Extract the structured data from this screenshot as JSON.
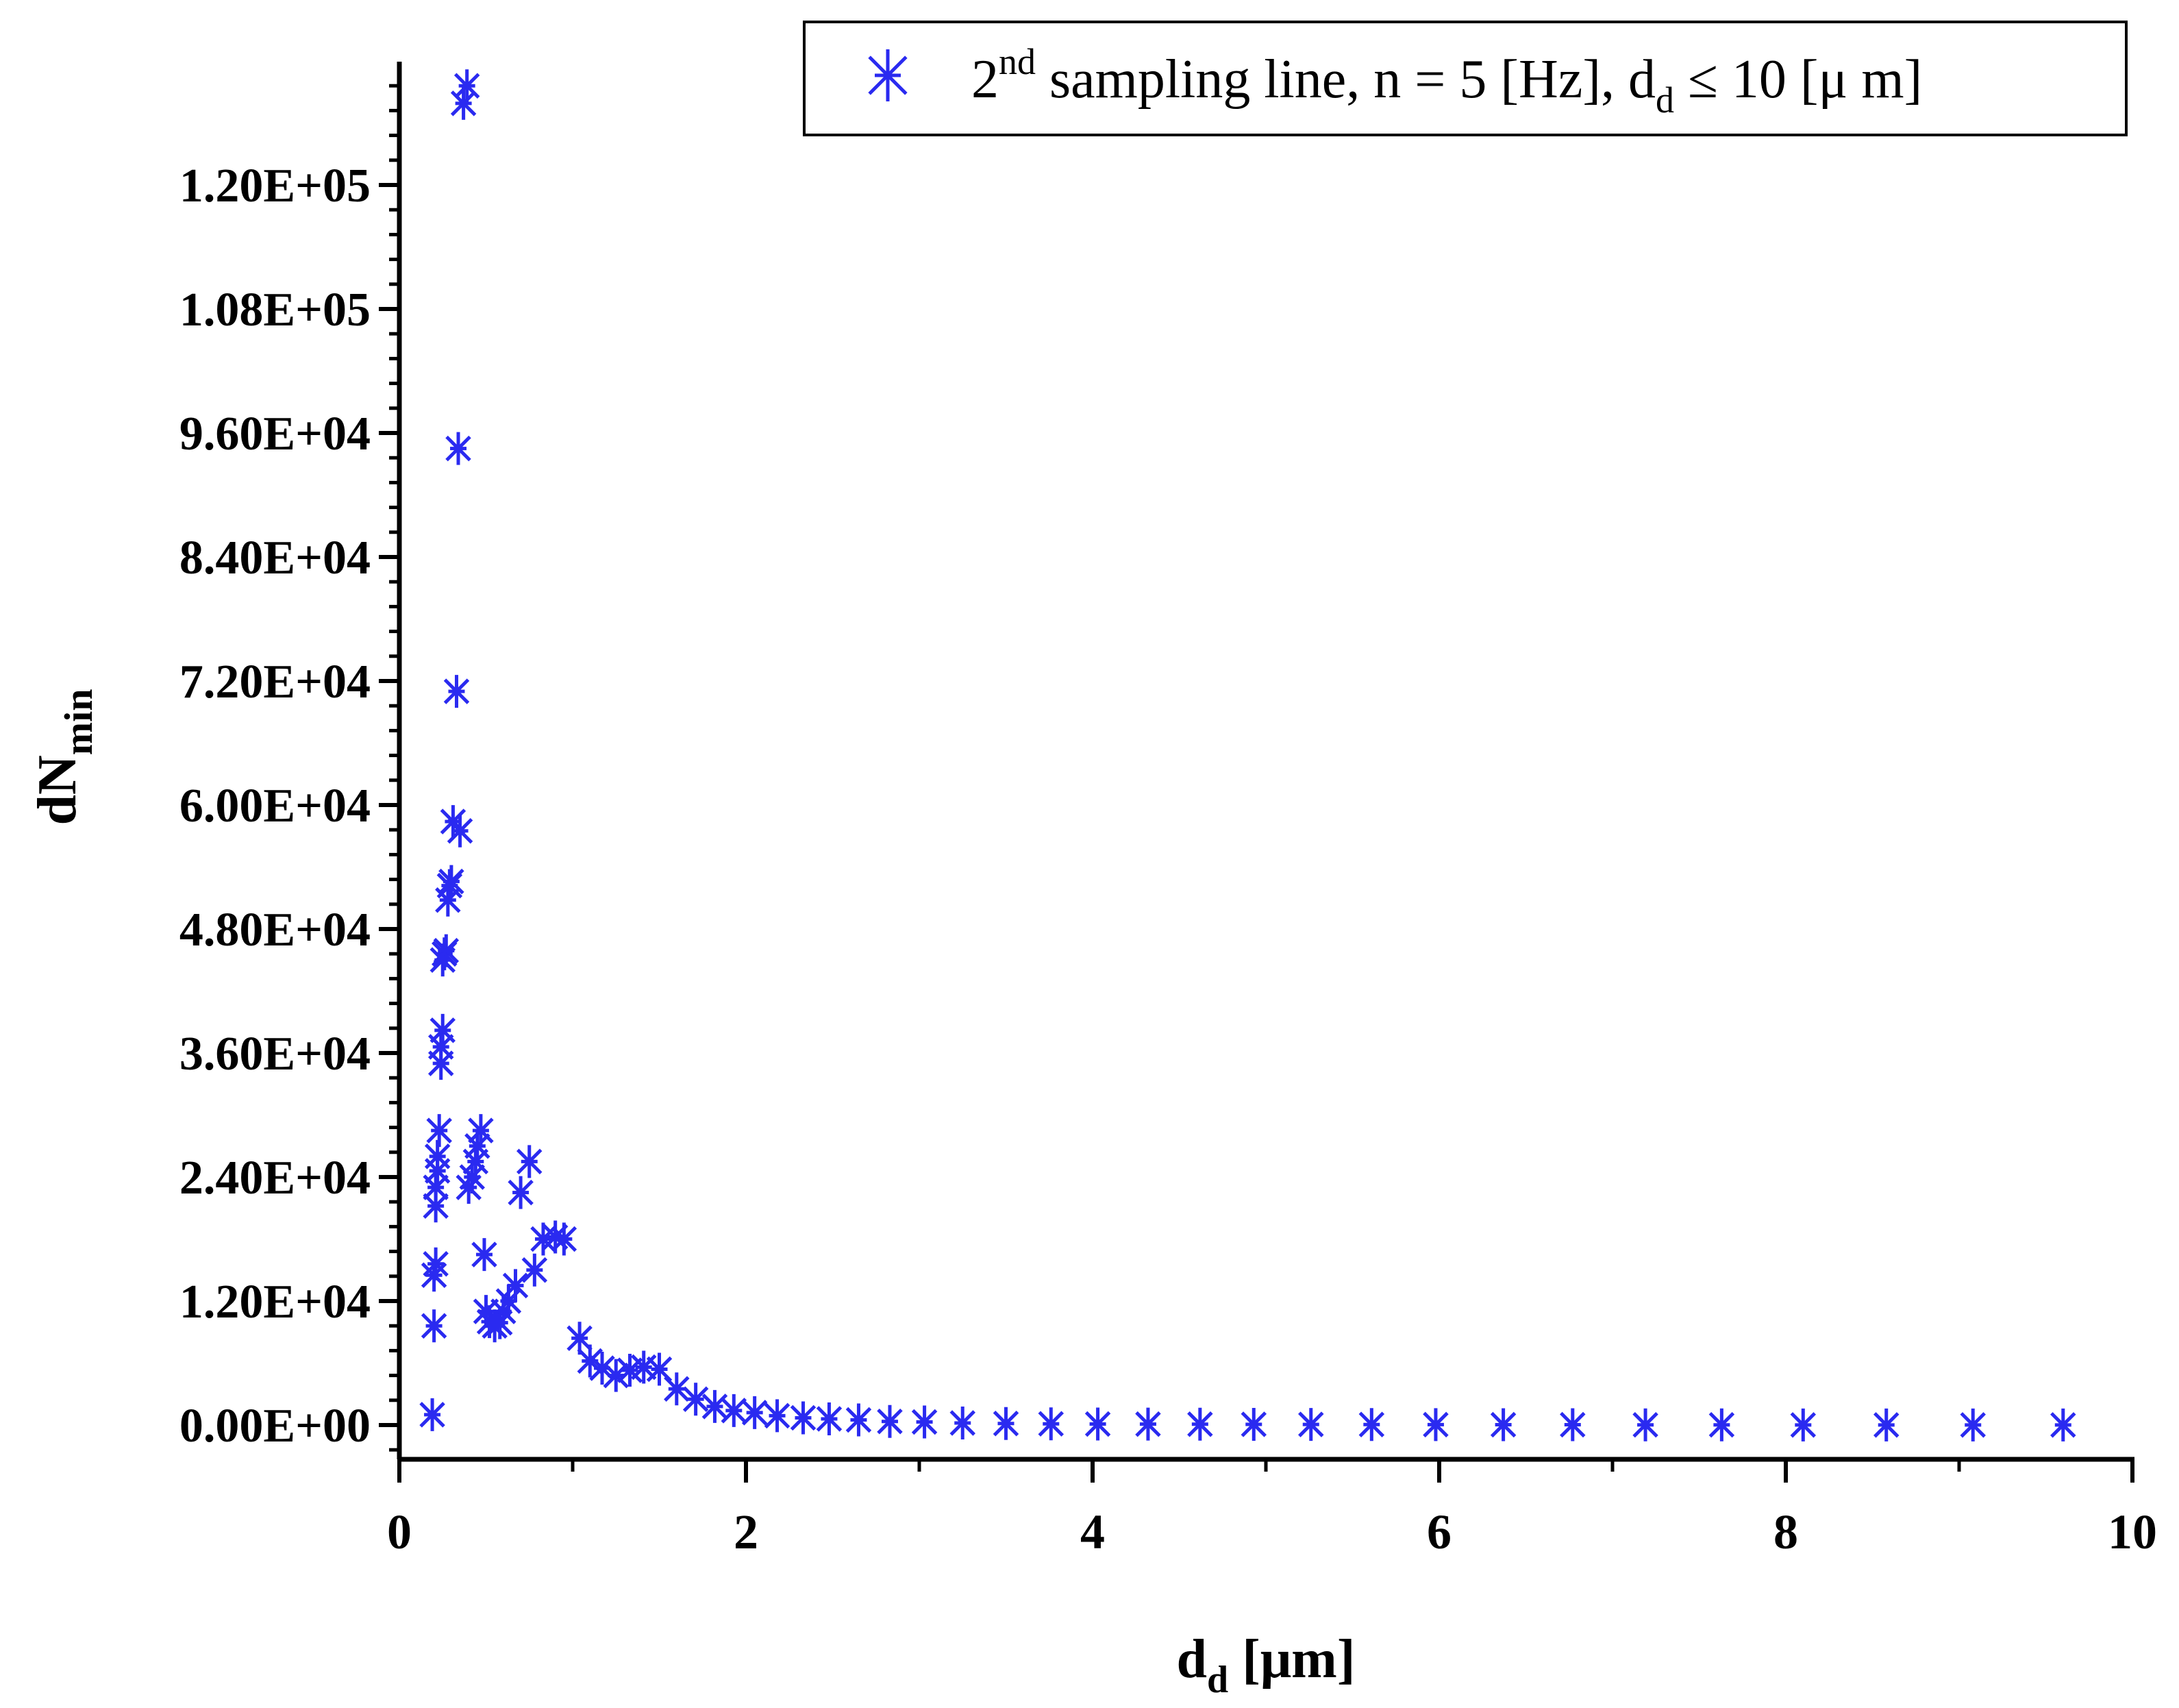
{
  "chart_data": {
    "type": "scatter",
    "title": "",
    "xlabel": {
      "main": "d",
      "sub": "d",
      "unit": " [μm]"
    },
    "ylabel": {
      "main": "dN",
      "sub": "min"
    },
    "xlim": [
      0,
      10
    ],
    "ylim": [
      -3000,
      133000
    ],
    "grid": false,
    "legend_position": "top-right",
    "x_ticks": [
      0,
      2,
      4,
      6,
      8,
      10
    ],
    "x_tick_labels": [
      "0",
      "2",
      "4",
      "6",
      "8",
      "10"
    ],
    "y_ticks": [
      0,
      12000,
      24000,
      36000,
      48000,
      60000,
      72000,
      84000,
      96000,
      108000,
      120000
    ],
    "y_tick_labels": [
      "0.00E+00",
      "1.20E+04",
      "2.40E+04",
      "3.60E+04",
      "4.80E+04",
      "6.00E+04",
      "7.20E+04",
      "8.40E+04",
      "9.60E+04",
      "1.08E+05",
      "1.20E+05"
    ],
    "series": [
      {
        "name": "2nd sampling line, n = 5 [Hz], dd ≤ 10 [μ m]",
        "legend_parts": {
          "base": "2",
          "sup": "nd",
          "mid": " sampling line, n = 5 [Hz], d",
          "sub": "d",
          "tail": " ≤ 10 [μ m]"
        },
        "color": "#2a2af0",
        "marker": "asterisk",
        "x": [
          0.19,
          0.2,
          0.2,
          0.21,
          0.21,
          0.21,
          0.22,
          0.22,
          0.23,
          0.24,
          0.24,
          0.25,
          0.25,
          0.26,
          0.27,
          0.28,
          0.29,
          0.3,
          0.31,
          0.33,
          0.34,
          0.35,
          0.37,
          0.39,
          0.4,
          0.42,
          0.44,
          0.45,
          0.47,
          0.49,
          0.5,
          0.52,
          0.55,
          0.58,
          0.6,
          0.63,
          0.67,
          0.7,
          0.75,
          0.78,
          0.83,
          0.9,
          0.95,
          1.04,
          1.1,
          1.17,
          1.25,
          1.33,
          1.41,
          1.5,
          1.6,
          1.71,
          1.82,
          1.93,
          2.05,
          2.18,
          2.33,
          2.48,
          2.65,
          2.83,
          3.03,
          3.25,
          3.5,
          3.76,
          4.03,
          4.32,
          4.62,
          4.93,
          5.26,
          5.61,
          5.98,
          6.37,
          6.77,
          7.19,
          7.63,
          8.1,
          8.58,
          9.08,
          9.6
        ],
        "y": [
          1000,
          9600,
          14500,
          15600,
          21200,
          23000,
          24600,
          26000,
          28500,
          35000,
          36600,
          38200,
          45000,
          45600,
          45900,
          50800,
          52200,
          52600,
          58400,
          71000,
          94500,
          57500,
          127900,
          129600,
          23000,
          24000,
          25500,
          27000,
          28500,
          16500,
          11000,
          10000,
          9600,
          9900,
          11000,
          12000,
          13500,
          22500,
          25500,
          15000,
          18000,
          18200,
          18000,
          8400,
          6200,
          5500,
          4800,
          5300,
          5600,
          5400,
          3500,
          2500,
          1800,
          1400,
          1200,
          900,
          700,
          600,
          500,
          350,
          300,
          200,
          150,
          120,
          100,
          90,
          80,
          70,
          60,
          50,
          40,
          30,
          30,
          20,
          20,
          10,
          10,
          10,
          10
        ]
      }
    ]
  }
}
